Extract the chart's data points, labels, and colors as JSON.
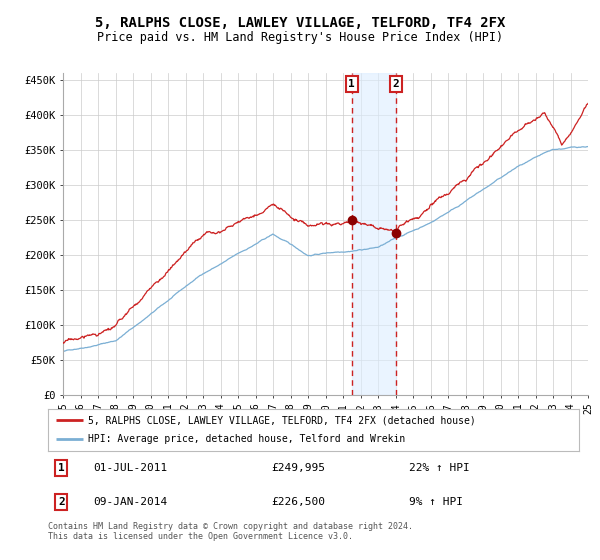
{
  "title": "5, RALPHS CLOSE, LAWLEY VILLAGE, TELFORD, TF4 2FX",
  "subtitle": "Price paid vs. HM Land Registry's House Price Index (HPI)",
  "legend_line1": "5, RALPHS CLOSE, LAWLEY VILLAGE, TELFORD, TF4 2FX (detached house)",
  "legend_line2": "HPI: Average price, detached house, Telford and Wrekin",
  "annotation1_date": "01-JUL-2011",
  "annotation1_price": "£249,995",
  "annotation1_hpi": "22% ↑ HPI",
  "annotation2_date": "09-JAN-2014",
  "annotation2_price": "£226,500",
  "annotation2_hpi": "9% ↑ HPI",
  "footer": "Contains HM Land Registry data © Crown copyright and database right 2024.\nThis data is licensed under the Open Government Licence v3.0.",
  "hpi_color": "#7bafd4",
  "price_color": "#cc2222",
  "marker_color": "#8b0000",
  "point1_x": 2011.5,
  "point1_y": 249995,
  "point2_x": 2014.03,
  "point2_y": 226500,
  "shade_color": "#ddeeff",
  "ylim": [
    0,
    460000
  ],
  "xlim_start": 1995,
  "xlim_end": 2025,
  "yticks": [
    0,
    50000,
    100000,
    150000,
    200000,
    250000,
    300000,
    350000,
    400000,
    450000
  ],
  "background_color": "#ffffff",
  "grid_color": "#cccccc"
}
